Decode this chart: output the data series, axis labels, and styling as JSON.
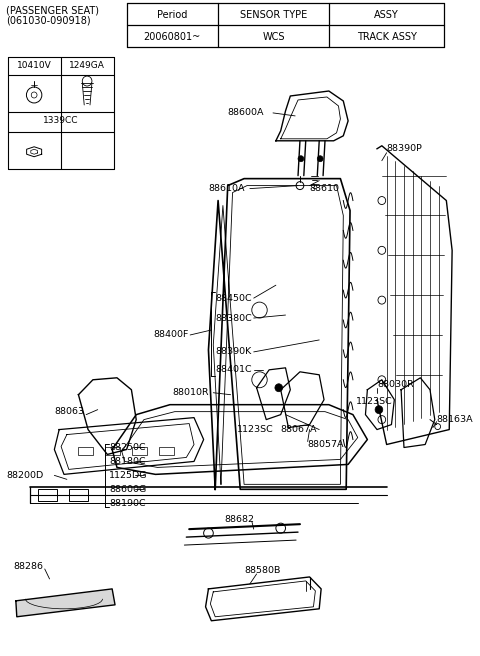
{
  "title_line1": "(PASSENGER SEAT)",
  "title_line2": "(061030-090918)",
  "bg_color": "#ffffff",
  "table_header": [
    "Period",
    "SENSOR TYPE",
    "ASSY"
  ],
  "table_row": [
    "20060801~",
    "WCS",
    "TRACK ASSY"
  ],
  "figsize": [
    4.8,
    6.56
  ],
  "dpi": 100
}
